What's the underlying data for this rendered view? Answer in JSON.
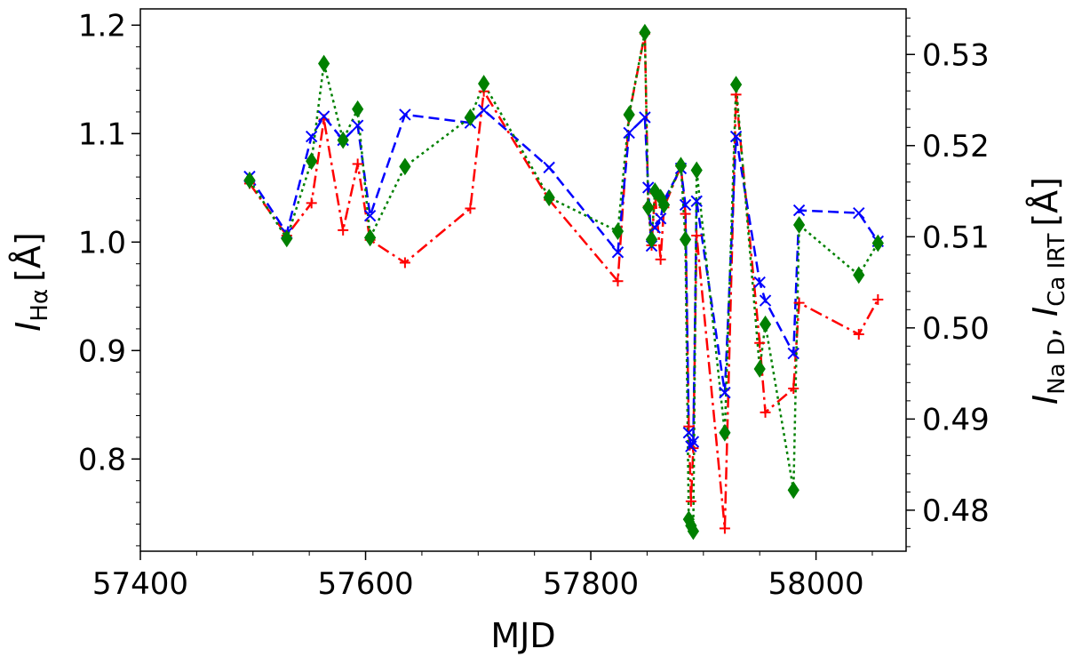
{
  "chart_data": {
    "type": "line",
    "xlabel": "MJD",
    "ylabel_left": {
      "main": "I",
      "sub": "Hα",
      "unit": "[Å]"
    },
    "ylabel_right": {
      "main1": "I",
      "sub1": "Na D",
      "sep": ", ",
      "main2": "I",
      "sub2": "Ca IRT",
      "unit": "[Å]"
    },
    "xlim": [
      57400,
      58080
    ],
    "ylim_left": [
      0.715,
      1.215
    ],
    "ylim_right": [
      0.4755,
      0.535
    ],
    "x_ticks": [
      57400,
      57600,
      57800,
      58000
    ],
    "x_tick_labels": [
      "57400",
      "57600",
      "57800",
      "58000"
    ],
    "y_left_ticks": [
      0.8,
      0.9,
      1.0,
      1.1,
      1.2
    ],
    "y_left_tick_labels": [
      "0.8",
      "0.9",
      "1.0",
      "1.1",
      "1.2"
    ],
    "y_right_ticks": [
      0.48,
      0.49,
      0.5,
      0.51,
      0.52,
      0.53
    ],
    "y_right_tick_labels": [
      "0.48",
      "0.49",
      "0.50",
      "0.51",
      "0.52",
      "0.53"
    ],
    "grid": false,
    "legend": "none",
    "series": [
      {
        "axis": "left",
        "color": "#ff0000",
        "marker": "plus",
        "dash": "dashdot",
        "points": [
          [
            57497,
            1.054
          ],
          [
            57530,
            1.006
          ],
          [
            57552,
            1.036
          ],
          [
            57563,
            1.113
          ],
          [
            57580,
            1.011
          ],
          [
            57593,
            1.072
          ],
          [
            57604,
            1.002
          ],
          [
            57635,
            0.981
          ],
          [
            57693,
            1.031
          ],
          [
            57705,
            1.139
          ],
          [
            57763,
            1.039
          ],
          [
            57824,
            0.964
          ],
          [
            57834,
            1.117
          ],
          [
            57848,
            1.192
          ],
          [
            57851,
            1.033
          ],
          [
            57854,
            0.997
          ],
          [
            57857,
            1.045
          ],
          [
            57862,
            0.984
          ],
          [
            57865,
            1.032
          ],
          [
            57880,
            1.07
          ],
          [
            57884,
            1.026
          ],
          [
            57887,
            0.83
          ],
          [
            57889,
            0.761
          ],
          [
            57891,
            0.81
          ],
          [
            57894,
            1.006
          ],
          [
            57919,
            0.736
          ],
          [
            57929,
            1.136
          ],
          [
            57950,
            0.907
          ],
          [
            57955,
            0.843
          ],
          [
            57980,
            0.865
          ],
          [
            57985,
            0.944
          ],
          [
            58038,
            0.915
          ],
          [
            58055,
            0.947
          ]
        ]
      },
      {
        "axis": "right",
        "color": "#0000ff",
        "marker": "x",
        "dash": "dashed",
        "points": [
          [
            57497,
            0.5166
          ],
          [
            57530,
            0.5104
          ],
          [
            57552,
            0.521
          ],
          [
            57563,
            0.5232
          ],
          [
            57580,
            0.5206
          ],
          [
            57593,
            0.5222
          ],
          [
            57604,
            0.5123
          ],
          [
            57635,
            0.5234
          ],
          [
            57693,
            0.5225
          ],
          [
            57705,
            0.5239
          ],
          [
            57763,
            0.5176
          ],
          [
            57824,
            0.5083
          ],
          [
            57834,
            0.5214
          ],
          [
            57848,
            0.5231
          ],
          [
            57851,
            0.5154
          ],
          [
            57854,
            0.509
          ],
          [
            57857,
            0.511
          ],
          [
            57862,
            0.512
          ],
          [
            57865,
            0.514
          ],
          [
            57880,
            0.5175
          ],
          [
            57884,
            0.5135
          ],
          [
            57887,
            0.4885
          ],
          [
            57889,
            0.487
          ],
          [
            57891,
            0.4875
          ],
          [
            57894,
            0.5139
          ],
          [
            57919,
            0.4929
          ],
          [
            57929,
            0.521
          ],
          [
            57950,
            0.505
          ],
          [
            57955,
            0.503
          ],
          [
            57980,
            0.4972
          ],
          [
            57985,
            0.5129
          ],
          [
            58038,
            0.5126
          ],
          [
            58055,
            0.5095
          ]
        ]
      },
      {
        "axis": "right",
        "color": "#008000",
        "marker": "diamond",
        "dash": "dotted",
        "points": [
          [
            57497,
            0.5162
          ],
          [
            57530,
            0.5098
          ],
          [
            57552,
            0.5183
          ],
          [
            57563,
            0.529
          ],
          [
            57580,
            0.5206
          ],
          [
            57593,
            0.524
          ],
          [
            57604,
            0.5099
          ],
          [
            57635,
            0.5177
          ],
          [
            57693,
            0.5231
          ],
          [
            57705,
            0.5268
          ],
          [
            57763,
            0.5143
          ],
          [
            57824,
            0.5106
          ],
          [
            57834,
            0.5234
          ],
          [
            57848,
            0.5324
          ],
          [
            57851,
            0.5132
          ],
          [
            57854,
            0.5097
          ],
          [
            57857,
            0.515
          ],
          [
            57862,
            0.5143
          ],
          [
            57865,
            0.5135
          ],
          [
            57880,
            0.5178
          ],
          [
            57884,
            0.5097
          ],
          [
            57887,
            0.479
          ],
          [
            57889,
            0.4783
          ],
          [
            57891,
            0.4777
          ],
          [
            57894,
            0.5173
          ],
          [
            57919,
            0.4885
          ],
          [
            57929,
            0.5267
          ],
          [
            57950,
            0.4955
          ],
          [
            57955,
            0.5004
          ],
          [
            57980,
            0.4822
          ],
          [
            57985,
            0.5113
          ],
          [
            58038,
            0.5058
          ],
          [
            58055,
            0.5093
          ]
        ]
      }
    ]
  }
}
